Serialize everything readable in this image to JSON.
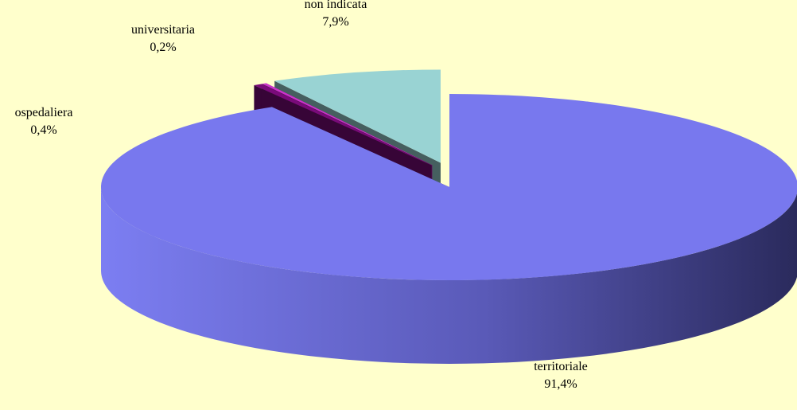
{
  "chart_data": {
    "type": "pie",
    "categories": [
      "territoriale",
      "ospedaliera",
      "universitaria",
      "non indicata"
    ],
    "values": [
      91.4,
      0.4,
      0.2,
      7.9
    ],
    "value_labels": [
      "91,4%",
      "0,4%",
      "0,2%",
      "7,9%"
    ],
    "colors": [
      "#7878ee",
      "#7a0a7a",
      "#cc33cc",
      "#99d3d3"
    ],
    "three_d": true,
    "exploded": [
      false,
      true,
      true,
      true
    ]
  }
}
